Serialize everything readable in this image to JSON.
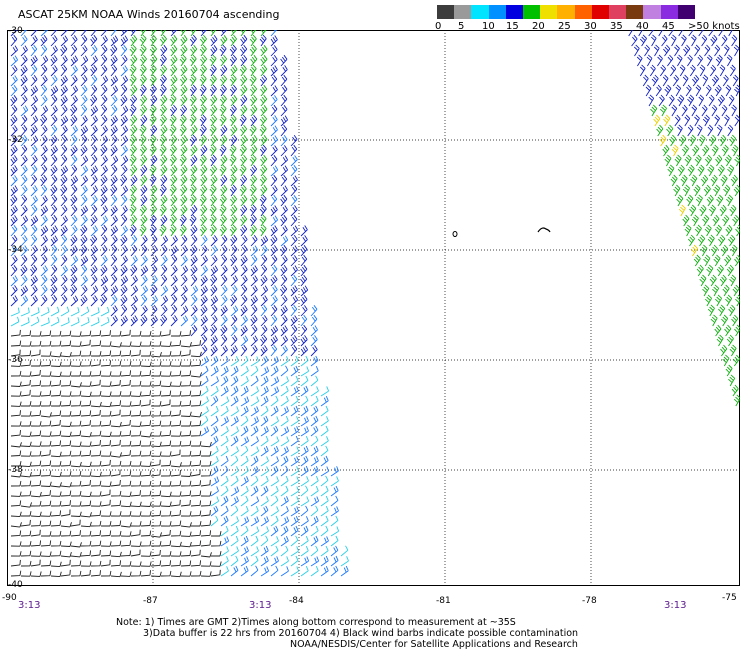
{
  "title": "ASCAT 25KM NOAA Winds 20160704 ascending",
  "legend": {
    "colors": [
      "#3c3c3c",
      "#9a9a9a",
      "#00e4ff",
      "#0090ff",
      "#0000e0",
      "#00c000",
      "#f0e000",
      "#ffb000",
      "#ff6000",
      "#e00000",
      "#e04060",
      "#7a3a10",
      "#c080e0",
      "#8a2be2",
      "#400070"
    ],
    "labels": [
      "0",
      "5",
      "10",
      "15",
      "20",
      "25",
      "30",
      "35",
      "40",
      "45",
      ">50 knots"
    ]
  },
  "map": {
    "lat_labels": [
      "-30",
      "-32",
      "-34",
      "-36",
      "-38",
      "-40"
    ],
    "lon_labels": [
      "-90",
      "-87",
      "-84",
      "-81",
      "-78",
      "-75"
    ],
    "time_labels": [
      "3:13",
      "3:13",
      "3:13"
    ]
  },
  "notes": [
    "Note: 1) Times are GMT 2)Times along bottom correspond to measurement at ~35S",
    "3)Data buffer is 22 hrs from 20160704 4) Black wind barbs indicate possible contamination",
    "NOAA/NESDIS/Center for Satellite Applications and Research"
  ]
}
